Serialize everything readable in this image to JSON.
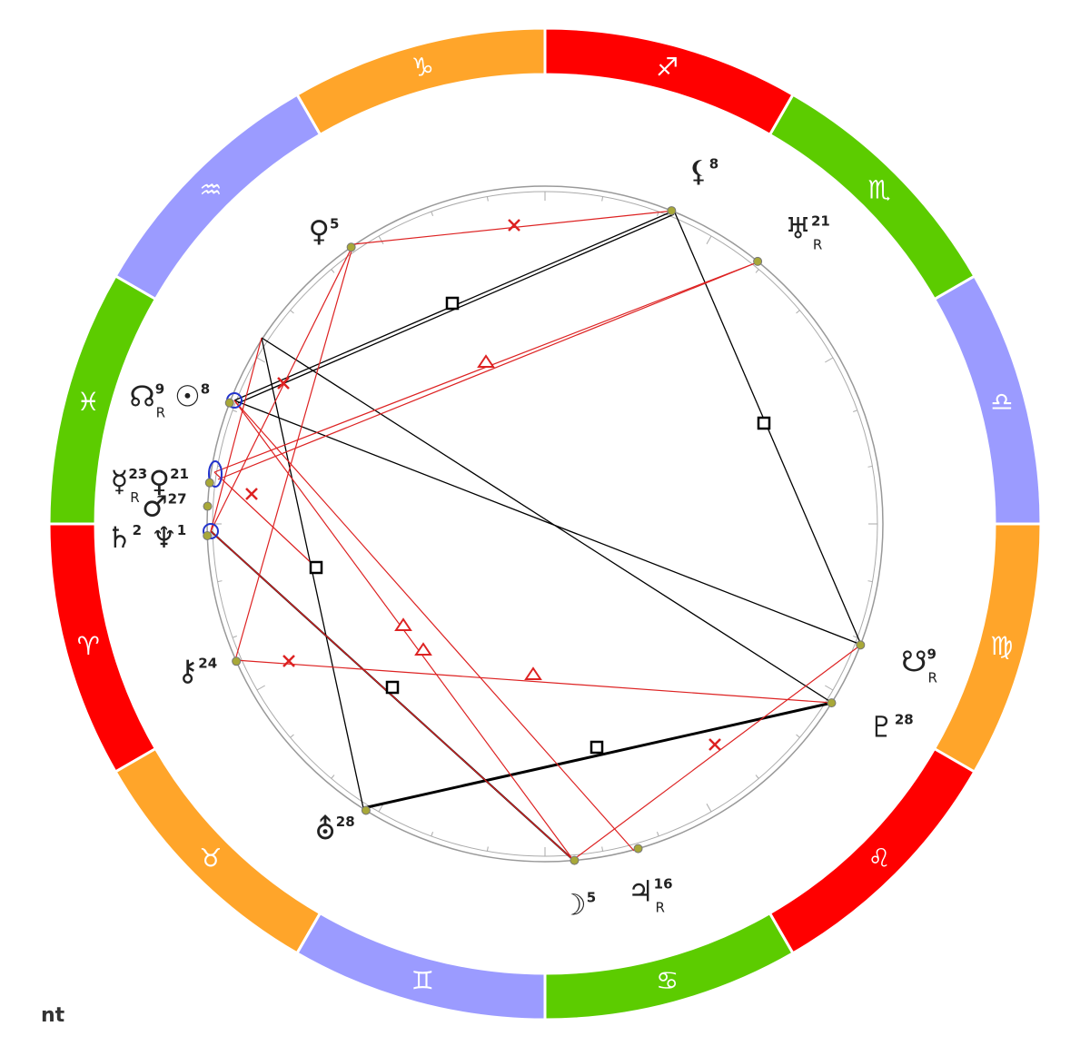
{
  "signs": [
    {
      "glyph": "♈",
      "color": "#ff0000",
      "points": [
        {
          "bodies": [
            {
              "glyph": "♄",
              "degree": 2
            },
            {
              "glyph": "♆",
              "degree": 1
            }
          ]
        },
        {
          "bodies": [
            {
              "glyph": "⚷",
              "degree": 24
            }
          ]
        }
      ]
    },
    {
      "glyph": "♉",
      "color": "#ffa52a",
      "points": [
        {
          "bodies": [
            {
              "glyph": "⛢",
              "degree": 28
            }
          ]
        }
      ]
    },
    {
      "glyph": "♊",
      "color": "#9b9bff",
      "points": []
    },
    {
      "glyph": "♋",
      "color": "#5ccc00",
      "points": [
        {
          "bodies": [
            {
              "glyph": "☽",
              "degree": 5
            }
          ]
        },
        {
          "bodies": [
            {
              "glyph": "♃",
              "degree": 16,
              "retrograde": "R"
            }
          ]
        }
      ]
    },
    {
      "glyph": "♌",
      "color": "#ff0000",
      "points": [
        {
          "bodies": [
            {
              "glyph": "♇",
              "degree": 28
            }
          ]
        }
      ]
    },
    {
      "glyph": "♍",
      "color": "#ffa52a",
      "points": [
        {
          "bodies": [
            {
              "glyph": "☋",
              "degree": 9,
              "retrograde": "R"
            }
          ]
        }
      ]
    },
    {
      "glyph": "♎",
      "color": "#9b9bff",
      "points": []
    },
    {
      "glyph": "♏",
      "color": "#5ccc00",
      "points": [
        {
          "bodies": [
            {
              "glyph": "♅",
              "degree": 21,
              "retrograde": "R"
            }
          ]
        }
      ]
    },
    {
      "glyph": "♐",
      "color": "#ff0000",
      "points": [
        {
          "bodies": [
            {
              "glyph": "⚸",
              "degree": 8
            }
          ]
        }
      ]
    },
    {
      "glyph": "♑",
      "color": "#ffa52a",
      "points": []
    },
    {
      "glyph": "♒",
      "color": "#9b9bff",
      "points": [
        {
          "bodies": [
            {
              "glyph": "♀",
              "degree": 5
            }
          ]
        }
      ]
    },
    {
      "glyph": "♓",
      "color": "#5ccc00",
      "points": [
        {
          "bodies": [
            {
              "glyph": "♂",
              "degree": 27
            }
          ]
        },
        {
          "bodies": [
            {
              "glyph": "☊",
              "degree": 9,
              "retrograde": "R"
            },
            {
              "glyph": "☉",
              "degree": 8
            }
          ]
        },
        {
          "bodies": [
            {
              "glyph": "☿",
              "degree": 23,
              "retrograde": "R"
            },
            {
              "glyph": "♀",
              "degree": 21
            }
          ]
        }
      ]
    }
  ],
  "footer": "nt"
}
